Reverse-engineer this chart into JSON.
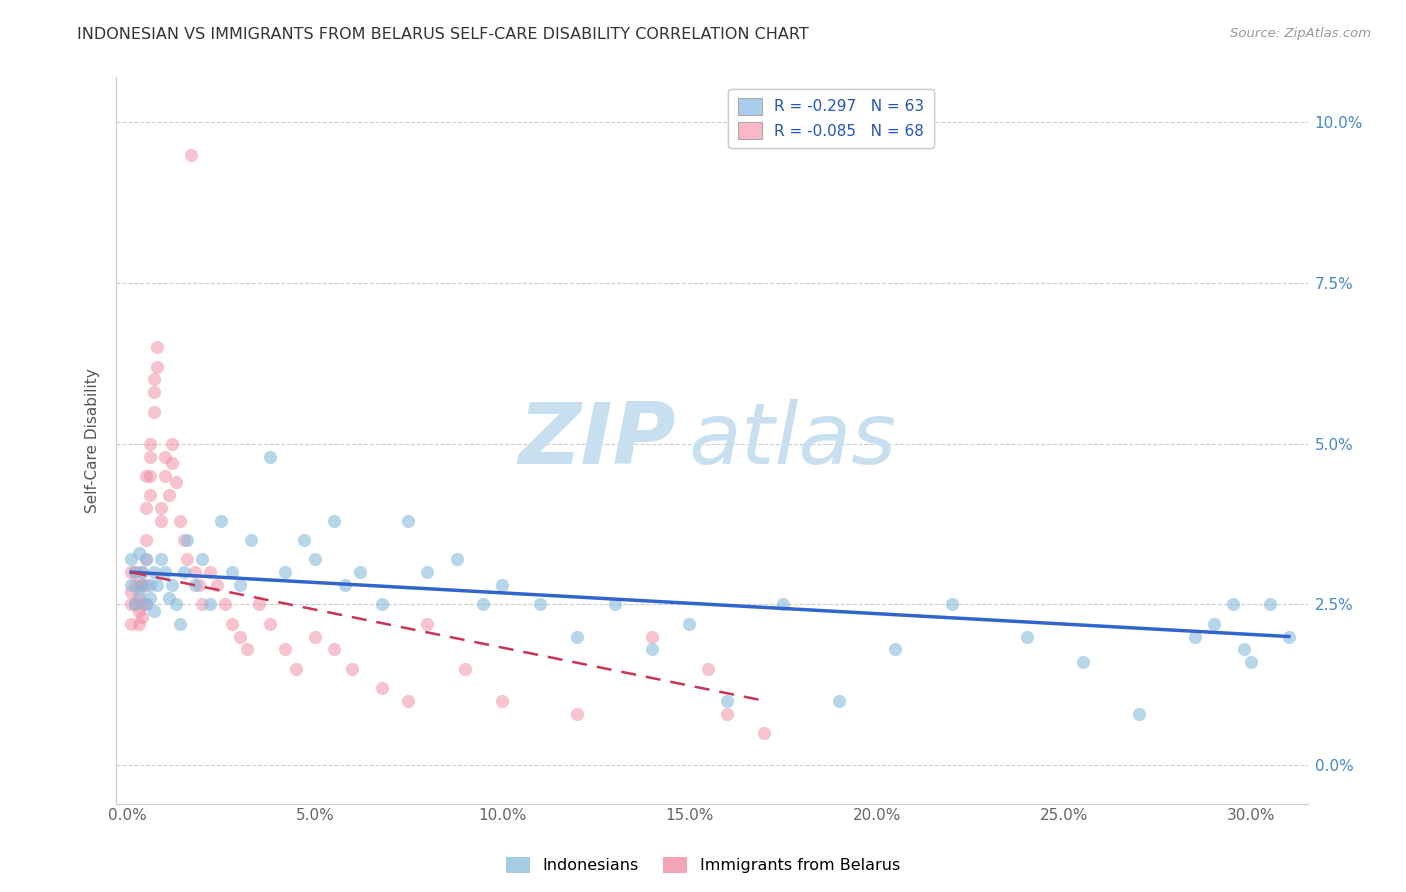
{
  "title": "INDONESIAN VS IMMIGRANTS FROM BELARUS SELF-CARE DISABILITY CORRELATION CHART",
  "source": "Source: ZipAtlas.com",
  "ylabel": "Self-Care Disability",
  "xlabel_ticks": [
    "0.0%",
    "5.0%",
    "10.0%",
    "15.0%",
    "20.0%",
    "25.0%",
    "30.0%"
  ],
  "xlabel_vals": [
    0.0,
    0.05,
    0.1,
    0.15,
    0.2,
    0.25,
    0.3
  ],
  "ylabel_ticks": [
    "0.0%",
    "2.5%",
    "5.0%",
    "7.5%",
    "10.0%"
  ],
  "ylabel_vals": [
    0.0,
    0.025,
    0.05,
    0.075,
    0.1
  ],
  "xlim": [
    -0.003,
    0.315
  ],
  "ylim": [
    -0.006,
    0.107
  ],
  "legend_entries": [
    {
      "label": "R = -0.297   N = 63",
      "facecolor": "#aaccee"
    },
    {
      "label": "R = -0.085   N = 68",
      "facecolor": "#f9b8c8"
    }
  ],
  "legend_bottom": [
    "Indonesians",
    "Immigrants from Belarus"
  ],
  "indonesian_color": "#88bbdd",
  "belarus_color": "#f088a0",
  "indonesian_alpha": 0.6,
  "belarus_alpha": 0.5,
  "dot_size": 90,
  "trend_blue_color": "#3366cc",
  "trend_pink_color": "#cc3355",
  "watermark_zip_color": "#c8dff0",
  "watermark_atlas_color": "#c8dff0",
  "indonesian_x": [
    0.001,
    0.001,
    0.002,
    0.002,
    0.003,
    0.003,
    0.004,
    0.004,
    0.005,
    0.005,
    0.006,
    0.006,
    0.007,
    0.007,
    0.008,
    0.009,
    0.01,
    0.011,
    0.012,
    0.013,
    0.014,
    0.015,
    0.016,
    0.018,
    0.02,
    0.022,
    0.025,
    0.028,
    0.03,
    0.033,
    0.038,
    0.042,
    0.047,
    0.05,
    0.055,
    0.058,
    0.062,
    0.068,
    0.075,
    0.08,
    0.088,
    0.095,
    0.1,
    0.11,
    0.12,
    0.13,
    0.14,
    0.15,
    0.16,
    0.175,
    0.19,
    0.205,
    0.22,
    0.24,
    0.255,
    0.27,
    0.285,
    0.29,
    0.295,
    0.298,
    0.3,
    0.305,
    0.31
  ],
  "indonesian_y": [
    0.028,
    0.032,
    0.03,
    0.025,
    0.027,
    0.033,
    0.03,
    0.028,
    0.025,
    0.032,
    0.028,
    0.026,
    0.03,
    0.024,
    0.028,
    0.032,
    0.03,
    0.026,
    0.028,
    0.025,
    0.022,
    0.03,
    0.035,
    0.028,
    0.032,
    0.025,
    0.038,
    0.03,
    0.028,
    0.035,
    0.048,
    0.03,
    0.035,
    0.032,
    0.038,
    0.028,
    0.03,
    0.025,
    0.038,
    0.03,
    0.032,
    0.025,
    0.028,
    0.025,
    0.02,
    0.025,
    0.018,
    0.022,
    0.01,
    0.025,
    0.01,
    0.018,
    0.025,
    0.02,
    0.016,
    0.008,
    0.02,
    0.022,
    0.025,
    0.018,
    0.016,
    0.025,
    0.02
  ],
  "belarus_x": [
    0.001,
    0.001,
    0.001,
    0.001,
    0.002,
    0.002,
    0.002,
    0.003,
    0.003,
    0.003,
    0.003,
    0.004,
    0.004,
    0.004,
    0.004,
    0.005,
    0.005,
    0.005,
    0.005,
    0.005,
    0.005,
    0.006,
    0.006,
    0.006,
    0.006,
    0.007,
    0.007,
    0.007,
    0.008,
    0.008,
    0.009,
    0.009,
    0.01,
    0.01,
    0.011,
    0.012,
    0.012,
    0.013,
    0.014,
    0.015,
    0.016,
    0.017,
    0.018,
    0.019,
    0.02,
    0.022,
    0.024,
    0.026,
    0.028,
    0.03,
    0.032,
    0.035,
    0.038,
    0.042,
    0.045,
    0.05,
    0.055,
    0.06,
    0.068,
    0.075,
    0.08,
    0.09,
    0.1,
    0.12,
    0.14,
    0.155,
    0.16,
    0.17
  ],
  "belarus_y": [
    0.03,
    0.027,
    0.025,
    0.022,
    0.03,
    0.028,
    0.025,
    0.028,
    0.026,
    0.024,
    0.022,
    0.03,
    0.028,
    0.025,
    0.023,
    0.045,
    0.04,
    0.035,
    0.032,
    0.028,
    0.025,
    0.05,
    0.048,
    0.045,
    0.042,
    0.06,
    0.058,
    0.055,
    0.065,
    0.062,
    0.04,
    0.038,
    0.048,
    0.045,
    0.042,
    0.05,
    0.047,
    0.044,
    0.038,
    0.035,
    0.032,
    0.095,
    0.03,
    0.028,
    0.025,
    0.03,
    0.028,
    0.025,
    0.022,
    0.02,
    0.018,
    0.025,
    0.022,
    0.018,
    0.015,
    0.02,
    0.018,
    0.015,
    0.012,
    0.01,
    0.022,
    0.015,
    0.01,
    0.008,
    0.02,
    0.015,
    0.008,
    0.005
  ],
  "trend_indo_x0": 0.001,
  "trend_indo_x1": 0.31,
  "trend_indo_y0": 0.03,
  "trend_indo_y1": 0.02,
  "trend_bel_x0": 0.001,
  "trend_bel_x1": 0.17,
  "trend_bel_y0": 0.03,
  "trend_bel_y1": 0.01
}
